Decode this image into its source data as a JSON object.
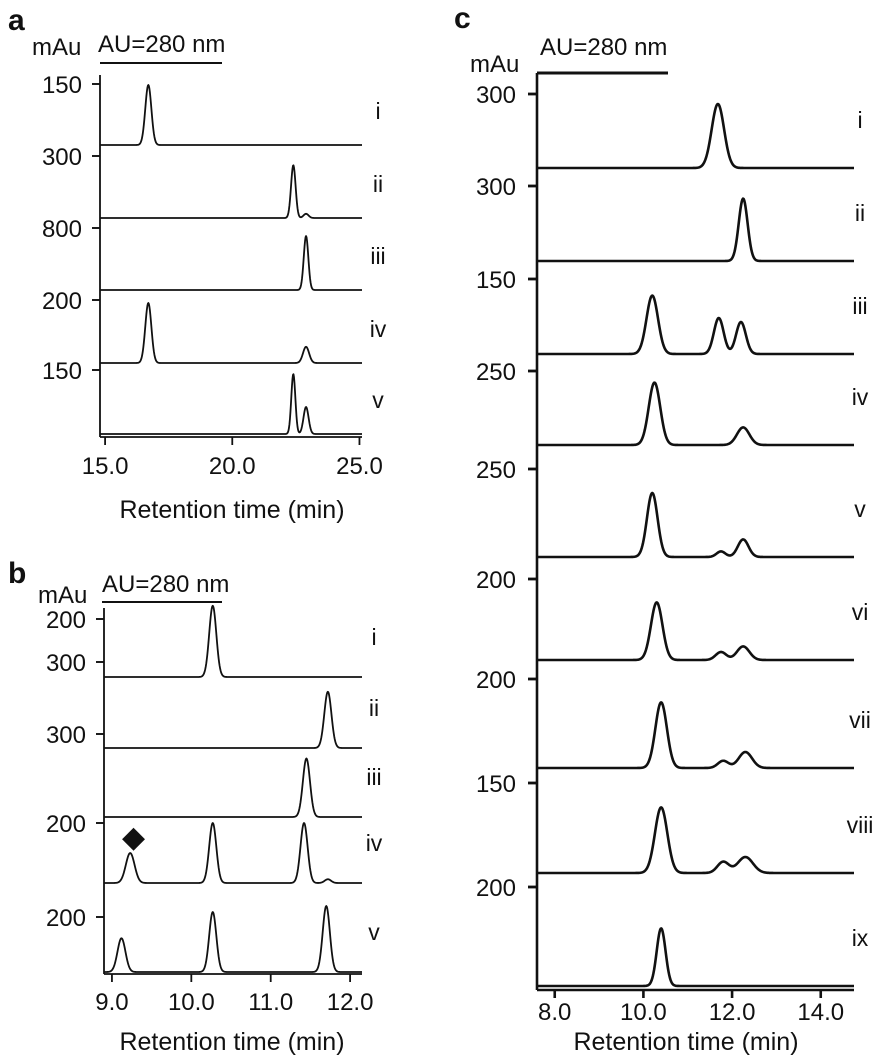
{
  "chart_data": [
    {
      "panel": "a",
      "type": "line",
      "unit": "mAu",
      "detection": "AU=280 nm",
      "xlabel": "Retention time (min)",
      "ylabel": "",
      "xlim": [
        14.8,
        25.1
      ],
      "xticks": [
        "15.0",
        "20.0",
        "25.0"
      ],
      "series": [
        {
          "label": "i",
          "scale": "150",
          "peaks": [
            [
              16.7,
              1.0,
              0.12
            ]
          ]
        },
        {
          "label": "ii",
          "scale": "300",
          "peaks": [
            [
              22.4,
              0.88,
              0.09
            ],
            [
              22.9,
              0.07,
              0.1
            ]
          ]
        },
        {
          "label": "iii",
          "scale": "800",
          "peaks": [
            [
              22.9,
              0.9,
              0.09
            ]
          ]
        },
        {
          "label": "iv",
          "scale": "200",
          "peaks": [
            [
              16.7,
              1.0,
              0.12
            ],
            [
              22.9,
              0.27,
              0.12
            ]
          ]
        },
        {
          "label": "v",
          "scale": "150",
          "peaks": [
            [
              22.4,
              1.0,
              0.08
            ],
            [
              22.9,
              0.45,
              0.1
            ]
          ]
        }
      ]
    },
    {
      "panel": "b",
      "type": "line",
      "unit": "mAu",
      "detection": "AU=280 nm",
      "xlabel": "Retention time (min)",
      "ylabel": "",
      "xlim": [
        8.9,
        12.15
      ],
      "xticks": [
        "9.0",
        "10.0",
        "11.0",
        "12.0"
      ],
      "annotation": "◆",
      "series": [
        {
          "label": "i",
          "scale": "200",
          "peaks": [
            [
              10.27,
              0.95,
              0.045
            ]
          ]
        },
        {
          "label": "ii",
          "scale": "300",
          "peaks": [
            [
              11.72,
              0.75,
              0.045
            ]
          ]
        },
        {
          "label": "iii",
          "scale": "300",
          "peaks": [
            [
              11.45,
              0.78,
              0.045
            ]
          ]
        },
        {
          "label": "iv",
          "scale": "200",
          "peaks": [
            [
              9.23,
              0.4,
              0.055
            ],
            [
              10.27,
              0.8,
              0.045
            ],
            [
              11.42,
              0.8,
              0.045
            ],
            [
              11.72,
              0.05,
              0.04
            ]
          ]
        },
        {
          "label": "v",
          "scale": "200",
          "peaks": [
            [
              9.12,
              0.45,
              0.05
            ],
            [
              10.27,
              0.8,
              0.045
            ],
            [
              11.7,
              0.88,
              0.045
            ]
          ]
        }
      ]
    },
    {
      "panel": "c",
      "type": "line",
      "unit": "mAu",
      "detection": "AU=280 nm",
      "xlabel": "Retention time (min)",
      "ylabel": "",
      "xlim": [
        7.6,
        14.75
      ],
      "xticks": [
        "8.0",
        "10.0",
        "12.0",
        "14.0"
      ],
      "series": [
        {
          "label": "i",
          "scale": "300",
          "peaks": [
            [
              11.68,
              0.8,
              0.14
            ]
          ]
        },
        {
          "label": "ii",
          "scale": "300",
          "peaks": [
            [
              12.25,
              0.78,
              0.1
            ]
          ]
        },
        {
          "label": "iii",
          "scale": "150",
          "peaks": [
            [
              10.2,
              0.73,
              0.13
            ],
            [
              11.7,
              0.45,
              0.11
            ],
            [
              12.2,
              0.4,
              0.11
            ]
          ]
        },
        {
          "label": "iv",
          "scale": "250",
          "peaks": [
            [
              10.25,
              0.78,
              0.13
            ],
            [
              12.25,
              0.22,
              0.14
            ]
          ]
        },
        {
          "label": "v",
          "scale": "250",
          "peaks": [
            [
              10.2,
              0.8,
              0.12
            ],
            [
              11.75,
              0.07,
              0.1
            ],
            [
              12.25,
              0.22,
              0.12
            ]
          ]
        },
        {
          "label": "vi",
          "scale": "200",
          "peaks": [
            [
              10.3,
              0.72,
              0.13
            ],
            [
              11.75,
              0.1,
              0.12
            ],
            [
              12.25,
              0.17,
              0.14
            ]
          ]
        },
        {
          "label": "vii",
          "scale": "200",
          "peaks": [
            [
              10.4,
              0.82,
              0.13
            ],
            [
              11.8,
              0.09,
              0.12
            ],
            [
              12.3,
              0.2,
              0.15
            ]
          ]
        },
        {
          "label": "viii",
          "scale": "150",
          "peaks": [
            [
              10.4,
              0.82,
              0.14
            ],
            [
              11.8,
              0.14,
              0.13
            ],
            [
              12.3,
              0.2,
              0.17
            ]
          ]
        },
        {
          "label": "ix",
          "scale": "200",
          "peaks": [
            [
              10.4,
              0.72,
              0.1
            ]
          ]
        }
      ]
    }
  ]
}
